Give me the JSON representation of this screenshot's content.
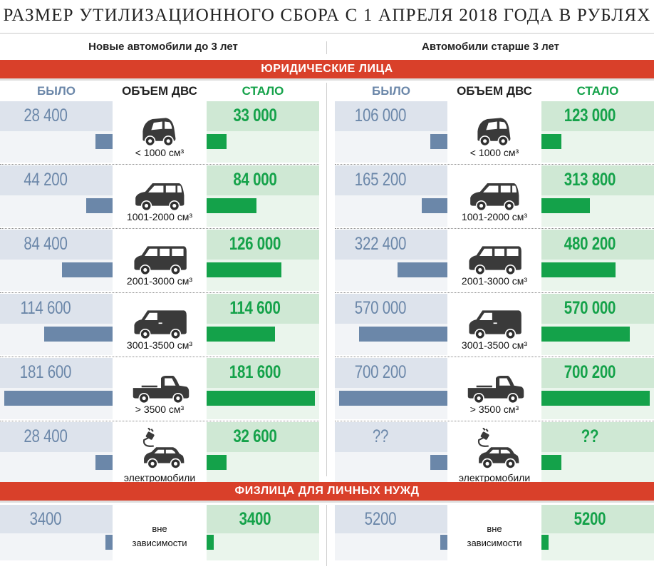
{
  "title": "РАЗМЕР УТИЛИЗАЦИОННОГО СБОРА С 1 АПРЕЛЯ 2018 ГОДА В РУБЛЯХ",
  "sections": {
    "new_cars": "Новые автомобили до 3 лет",
    "old_cars": "Автомобили старше 3 лет"
  },
  "bands": {
    "legal": "ЮРИДИЧЕСКИЕ ЛИЦА",
    "private": "ФИЗЛИЦА ДЛЯ ЛИЧНЫХ НУЖД"
  },
  "headers": {
    "was": "БЫЛО",
    "volume": "ОБЪЕМ ДВС",
    "now": "СТАЛО"
  },
  "colors": {
    "was": "#6b87a9",
    "now": "#15a24a",
    "band": "#d9402a"
  },
  "chart_data": {
    "type": "bar",
    "orientation": "horizontal",
    "categories": [
      "< 1000 см³",
      "1001-2000 см³",
      "2001-3000 см³",
      "3001-3500 см³",
      "> 3500 см³",
      "электромобили"
    ],
    "category_icons": [
      "microcar-icon",
      "minivan-icon",
      "van-icon",
      "cargo-van-icon",
      "pickup-truck-icon",
      "electric-car-icon"
    ],
    "groups": [
      {
        "name": "Новые автомобили до 3 лет",
        "series": [
          {
            "name": "БЫЛО",
            "values": [
              28400,
              44200,
              84400,
              114600,
              181600,
              28400
            ],
            "labels": [
              "28 400",
              "44 200",
              "84 400",
              "114 600",
              "181 600",
              "28 400"
            ]
          },
          {
            "name": "СТАЛО",
            "values": [
              33000,
              84000,
              126000,
              114600,
              181600,
              32600
            ],
            "labels": [
              "33 000",
              "84 000",
              "126 000",
              "114 600",
              "181 600",
              "32 600"
            ]
          }
        ]
      },
      {
        "name": "Автомобили старше 3 лет",
        "series": [
          {
            "name": "БЫЛО",
            "values": [
              106000,
              165200,
              322400,
              570000,
              700200,
              null
            ],
            "labels": [
              "106 000",
              "165 200",
              "322 400",
              "570 000",
              "700 200",
              "??"
            ]
          },
          {
            "name": "СТАЛО",
            "values": [
              123000,
              313800,
              480200,
              570000,
              700200,
              null
            ],
            "labels": [
              "123 000",
              "313 800",
              "480 200",
              "570 000",
              "700 200",
              "??"
            ]
          }
        ]
      }
    ],
    "private": {
      "category_label": "вне зависимости",
      "category_lines": [
        "вне",
        "зависимости"
      ],
      "groups": [
        {
          "name": "Новые автомобили до 3 лет",
          "was": 3400,
          "was_label": "3400",
          "now": 3400,
          "now_label": "3400"
        },
        {
          "name": "Автомобили старше 3 лет",
          "was": 5200,
          "was_label": "5200",
          "now": 5200,
          "now_label": "5200"
        }
      ]
    }
  }
}
